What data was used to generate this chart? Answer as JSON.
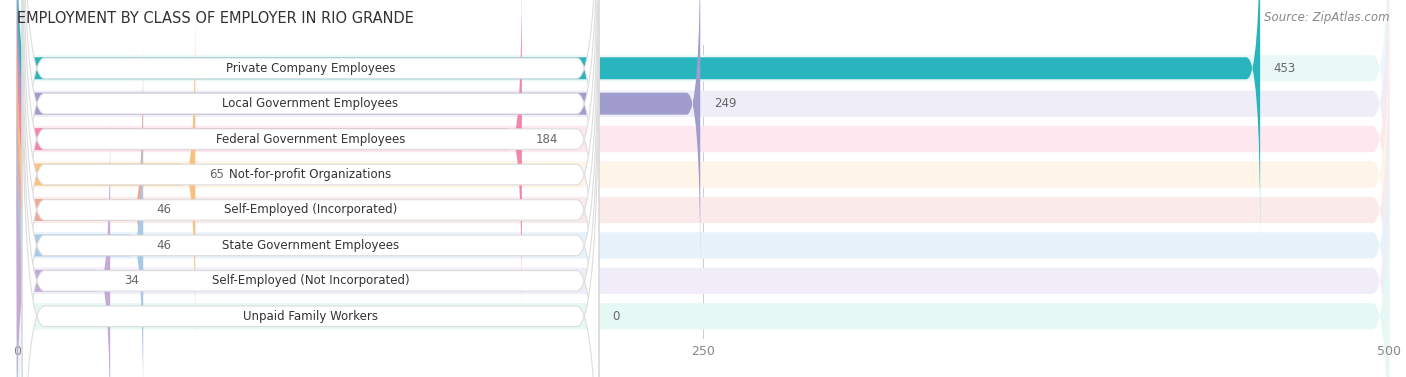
{
  "title": "EMPLOYMENT BY CLASS OF EMPLOYER IN RIO GRANDE",
  "source": "Source: ZipAtlas.com",
  "categories": [
    "Private Company Employees",
    "Local Government Employees",
    "Federal Government Employees",
    "Not-for-profit Organizations",
    "Self-Employed (Incorporated)",
    "State Government Employees",
    "Self-Employed (Not Incorporated)",
    "Unpaid Family Workers"
  ],
  "values": [
    453,
    249,
    184,
    65,
    46,
    46,
    34,
    0
  ],
  "bar_colors": [
    "#29b5be",
    "#a09cce",
    "#f285a8",
    "#f8c07c",
    "#eda898",
    "#a8c8e8",
    "#c4aad8",
    "#7ecec4"
  ],
  "bar_bg_colors": [
    "#eaf8f8",
    "#eeedf8",
    "#fde8f0",
    "#fef4e8",
    "#faeaea",
    "#e8f2fa",
    "#f0ecf8",
    "#e6f8f4"
  ],
  "label_pill_color": "#ffffff",
  "label_pill_edge_color": "#dddddd",
  "row_bg_color": "#f2f2f2",
  "xlim": [
    0,
    500
  ],
  "xticks": [
    0,
    250,
    500
  ],
  "title_fontsize": 10.5,
  "source_fontsize": 8.5,
  "label_fontsize": 8.5,
  "value_fontsize": 8.5,
  "background_color": "#ffffff"
}
